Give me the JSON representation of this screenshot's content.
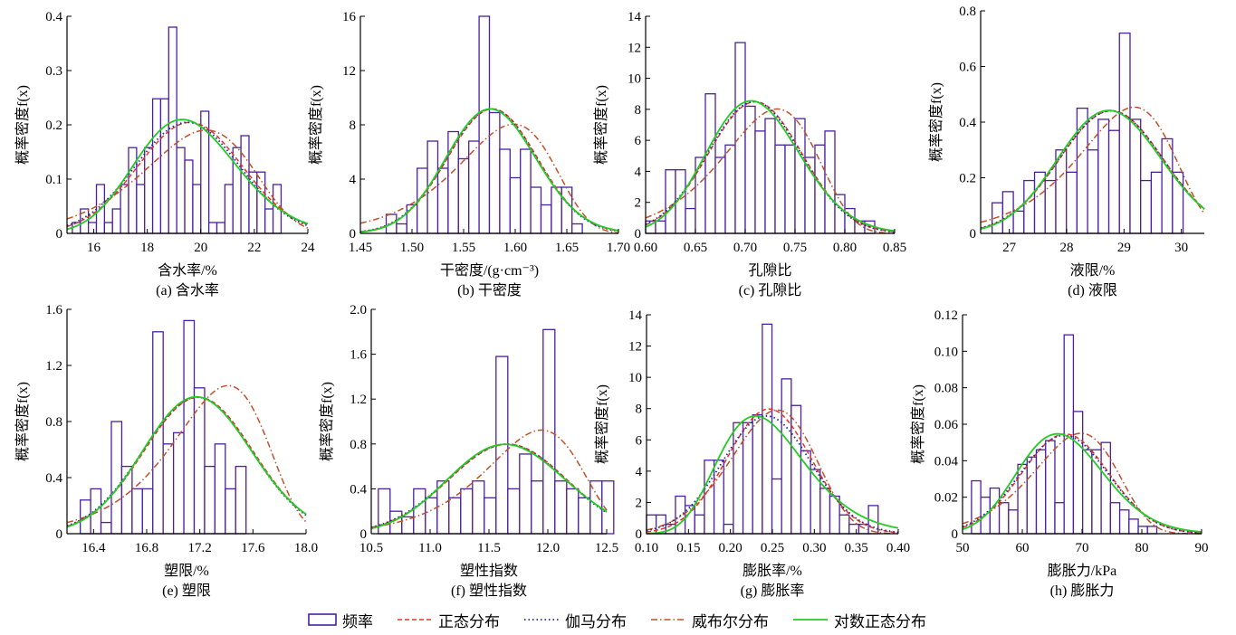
{
  "colors": {
    "bar": "#4b1fa0",
    "normal": "#e8332b",
    "gamma": "#1d2a9c",
    "weibull": "#c0502a",
    "lognormal": "#22cc22"
  },
  "legend": {
    "frequency": "频率",
    "normal": "正态分布",
    "gamma": "伽马分布",
    "weibull": "威布尔分布",
    "lognormal": "对数正态分布"
  },
  "chart_data": [
    {
      "type": "bar",
      "xlabel": "含水率/%",
      "caption": "(a) 含水率",
      "ylabel": "概率密度f(x)",
      "xlim": [
        15,
        24
      ],
      "ylim": [
        0,
        0.4
      ],
      "xticks": [
        "16",
        "18",
        "20",
        "22",
        "24"
      ],
      "xtick_values": [
        16,
        18,
        20,
        22,
        24
      ],
      "yticks": [
        "0",
        "0.1",
        "0.2",
        "0.3",
        "0.4"
      ],
      "ytick_values": [
        0,
        0.1,
        0.2,
        0.3,
        0.4
      ],
      "bin_start": 15.2,
      "bin_width": 0.3,
      "values": [
        0.02,
        0.045,
        0.02,
        0.09,
        0.02,
        0.045,
        0.09,
        0.158,
        0.09,
        0.158,
        0.248,
        0.248,
        0.38,
        0.158,
        0.135,
        0.09,
        0.225,
        0.02,
        0.02,
        0.09,
        0.158,
        0.18,
        0.113,
        0.113,
        0.045,
        0.09
      ],
      "fits": {
        "normal": {
          "dist": "normal",
          "mu": 19.6,
          "sigma": 1.95
        },
        "gamma": {
          "dist": "normal",
          "mu": 19.5,
          "sigma": 1.95
        },
        "weibull": {
          "dist": "weibull",
          "k": 10.5,
          "lambda": 20.4
        },
        "lognormal": {
          "dist": "lognormal",
          "mu": 2.97,
          "sigma": 0.098
        }
      }
    },
    {
      "type": "bar",
      "xlabel": "干密度/(g·cm⁻³)",
      "caption": "(b) 干密度",
      "ylabel": "概率密度f(x)",
      "xlim": [
        1.45,
        1.7
      ],
      "ylim": [
        0,
        16
      ],
      "xticks": [
        "1.45",
        "1.50",
        "1.55",
        "1.60",
        "1.65",
        "1.70"
      ],
      "xtick_values": [
        1.45,
        1.5,
        1.55,
        1.6,
        1.65,
        1.7
      ],
      "yticks": [
        "0",
        "4",
        "8",
        "12",
        "16"
      ],
      "ytick_values": [
        0,
        4,
        8,
        12,
        16
      ],
      "bin_start": 1.475,
      "bin_width": 0.01,
      "values": [
        1.4,
        0.7,
        2.1,
        4.8,
        6.8,
        4.8,
        7.5,
        5.5,
        6.8,
        16.0,
        8.9,
        6.2,
        4.1,
        6.2,
        3.4,
        2.1,
        3.4,
        3.4,
        0.7
      ],
      "fits": {
        "normal": {
          "dist": "normal",
          "mu": 1.578,
          "sigma": 0.0435
        },
        "gamma": {
          "dist": "normal",
          "mu": 1.577,
          "sigma": 0.0435
        },
        "weibull": {
          "dist": "weibull",
          "k": 35,
          "lambda": 1.6
        },
        "lognormal": {
          "dist": "lognormal",
          "mu": 0.4555,
          "sigma": 0.0276
        }
      }
    },
    {
      "type": "bar",
      "xlabel": "孔隙比",
      "caption": "(c) 孔隙比",
      "ylabel": "概率密度f(x)",
      "xlim": [
        0.6,
        0.85
      ],
      "ylim": [
        0,
        14
      ],
      "xticks": [
        "0.60",
        "0.65",
        "0.70",
        "0.75",
        "0.80",
        "0.85"
      ],
      "xtick_values": [
        0.6,
        0.65,
        0.7,
        0.75,
        0.8,
        0.85
      ],
      "yticks": [
        "0",
        "2",
        "4",
        "6",
        "8",
        "10",
        "12",
        "14"
      ],
      "ytick_values": [
        0,
        2,
        4,
        6,
        8,
        10,
        12,
        14
      ],
      "bin_start": 0.6,
      "bin_width": 0.01,
      "values": [
        0.8,
        0.8,
        4.1,
        4.1,
        1.6,
        4.9,
        9.0,
        4.9,
        5.7,
        12.3,
        8.2,
        6.6,
        7.4,
        5.7,
        5.7,
        7.4,
        4.9,
        5.7,
        6.6,
        2.5,
        1.6,
        0.8,
        0.8
      ],
      "fits": {
        "normal": {
          "dist": "normal",
          "mu": 0.71,
          "sigma": 0.047
        },
        "gamma": {
          "dist": "normal",
          "mu": 0.709,
          "sigma": 0.047
        },
        "weibull": {
          "dist": "weibull",
          "k": 16,
          "lambda": 0.735
        },
        "lognormal": {
          "dist": "lognormal",
          "mu": -0.344,
          "sigma": 0.066
        }
      }
    },
    {
      "type": "bar",
      "xlabel": "液限/%",
      "caption": "(d) 液限",
      "ylabel": "概率密度f(x)",
      "xlim": [
        26.5,
        30.4
      ],
      "ylim": [
        0,
        0.8
      ],
      "xticks": [
        "27",
        "28",
        "29",
        "30"
      ],
      "xtick_values": [
        27,
        28,
        29,
        30
      ],
      "yticks": [
        "0",
        "0.2",
        "0.4",
        "0.6",
        "0.8"
      ],
      "ytick_values": [
        0,
        0.2,
        0.4,
        0.6,
        0.8
      ],
      "bin_start": 26.7,
      "bin_width": 0.185,
      "values": [
        0.11,
        0.15,
        0.08,
        0.19,
        0.22,
        0.19,
        0.3,
        0.22,
        0.45,
        0.3,
        0.41,
        0.37,
        0.72,
        0.41,
        0.19,
        0.22,
        0.34,
        0.22
      ],
      "fits": {
        "normal": {
          "dist": "normal",
          "mu": 28.78,
          "sigma": 0.905
        },
        "gamma": {
          "dist": "normal",
          "mu": 28.77,
          "sigma": 0.905
        },
        "weibull": {
          "dist": "weibull",
          "k": 36,
          "lambda": 29.2
        },
        "lognormal": {
          "dist": "lognormal",
          "mu": 3.359,
          "sigma": 0.0314
        }
      }
    },
    {
      "type": "bar",
      "xlabel": "塑限/%",
      "caption": "(e) 塑限",
      "ylabel": "概率密度f(x)",
      "xlim": [
        16.2,
        18.0
      ],
      "ylim": [
        0,
        1.6
      ],
      "xticks": [
        "16.4",
        "16.8",
        "17.2",
        "17.6",
        "18.0"
      ],
      "xtick_values": [
        16.4,
        16.8,
        17.2,
        17.6,
        18.0
      ],
      "yticks": [
        "0",
        "0.4",
        "0.8",
        "1.2",
        "1.6"
      ],
      "ytick_values": [
        0,
        0.4,
        0.8,
        1.2,
        1.6
      ],
      "bin_start": 16.3,
      "bin_width": 0.078,
      "values": [
        0.24,
        0.32,
        0.08,
        0.8,
        0.48,
        0.32,
        0.32,
        1.44,
        0.64,
        0.72,
        1.52,
        1.04,
        0.48,
        0.64,
        0.32,
        0.48
      ],
      "fits": {
        "normal": {
          "dist": "normal",
          "mu": 17.19,
          "sigma": 0.41
        },
        "gamma": {
          "dist": "normal",
          "mu": 17.18,
          "sigma": 0.41
        },
        "weibull": {
          "dist": "weibull",
          "k": 50,
          "lambda": 17.42
        },
        "lognormal": {
          "dist": "lognormal",
          "mu": 2.844,
          "sigma": 0.0238
        }
      }
    },
    {
      "type": "bar",
      "xlabel": "塑性指数",
      "caption": "(f) 塑性指数",
      "ylabel": "概率密度f(x)",
      "xlim": [
        10.5,
        12.5
      ],
      "ylim": [
        0,
        2.0
      ],
      "xticks": [
        "10.5",
        "11.0",
        "11.5",
        "12.0",
        "12.5"
      ],
      "xtick_values": [
        10.5,
        11.0,
        11.5,
        12.0,
        12.5
      ],
      "yticks": [
        "0",
        "0.4",
        "0.8",
        "1.2",
        "1.6",
        "2.0"
      ],
      "ytick_values": [
        0,
        0.4,
        0.8,
        1.2,
        1.6,
        2.0
      ],
      "bin_start": 10.56,
      "bin_width": 0.1,
      "values": [
        0.4,
        0.2,
        0.15,
        0.4,
        0.32,
        0.47,
        0.32,
        0.4,
        0.47,
        0.32,
        1.58,
        0.4,
        0.71,
        0.47,
        1.82,
        0.47,
        0.4,
        0.32,
        0.47,
        0.47
      ],
      "fits": {
        "normal": {
          "dist": "normal",
          "mu": 11.66,
          "sigma": 0.5
        },
        "gamma": {
          "dist": "normal",
          "mu": 11.65,
          "sigma": 0.5
        },
        "weibull": {
          "dist": "weibull",
          "k": 30,
          "lambda": 11.96
        },
        "lognormal": {
          "dist": "lognormal",
          "mu": 2.456,
          "sigma": 0.043
        }
      }
    },
    {
      "type": "bar",
      "xlabel": "膨胀率/%",
      "caption": "(g) 膨胀率",
      "ylabel": "概率密度f(x)",
      "xlim": [
        0.1,
        0.4
      ],
      "ylim": [
        0,
        14
      ],
      "xticks": [
        "0.10",
        "0.15",
        "0.20",
        "0.25",
        "0.30",
        "0.35",
        "0.40"
      ],
      "xtick_values": [
        0.1,
        0.15,
        0.2,
        0.25,
        0.3,
        0.35,
        0.4
      ],
      "yticks": [
        "0",
        "2",
        "4",
        "6",
        "8",
        "10",
        "12",
        "14"
      ],
      "ytick_values": [
        0,
        2,
        4,
        6,
        8,
        10,
        12,
        14
      ],
      "bin_start": 0.1,
      "bin_width": 0.0115,
      "values": [
        1.2,
        1.2,
        0.6,
        2.4,
        1.8,
        1.2,
        4.7,
        4.7,
        0.6,
        7.1,
        7.1,
        7.6,
        13.4,
        3.5,
        9.9,
        8.2,
        5.3,
        4.1,
        2.9,
        2.4,
        1.2,
        0.6,
        0.6,
        1.8
      ],
      "fits": {
        "normal": {
          "dist": "normal",
          "mu": 0.246,
          "sigma": 0.05
        },
        "gamma": {
          "dist": "normal",
          "mu": 0.243,
          "sigma": 0.053
        },
        "weibull": {
          "dist": "weibull",
          "k": 5.6,
          "lambda": 0.265
        },
        "lognormal": {
          "dist": "lognormal",
          "mu": -1.42,
          "sigma": 0.225
        }
      }
    },
    {
      "type": "bar",
      "xlabel": "膨胀力/kPa",
      "caption": "(h) 膨胀力",
      "ylabel": "概率密度f(x)",
      "xlim": [
        50,
        90
      ],
      "ylim": [
        0,
        0.12
      ],
      "xticks": [
        "50",
        "60",
        "70",
        "80",
        "90"
      ],
      "xtick_values": [
        50,
        60,
        70,
        80,
        90
      ],
      "yticks": [
        "0",
        "0.02",
        "0.04",
        "0.06",
        "0.08",
        "0.10",
        "0.12"
      ],
      "ytick_values": [
        0,
        0.02,
        0.04,
        0.06,
        0.08,
        0.1,
        0.12
      ],
      "bin_start": 51.5,
      "bin_width": 1.55,
      "values": [
        0.029,
        0.02,
        0.025,
        0.017,
        0.013,
        0.038,
        0.042,
        0.046,
        0.051,
        0.017,
        0.109,
        0.067,
        0.046,
        0.046,
        0.05,
        0.017,
        0.013,
        0.008,
        0.004,
        0.004
      ],
      "fits": {
        "normal": {
          "dist": "normal",
          "mu": 67.2,
          "sigma": 7.3
        },
        "gamma": {
          "dist": "normal",
          "mu": 67.0,
          "sigma": 7.4
        },
        "weibull": {
          "dist": "weibull",
          "k": 10.5,
          "lambda": 70.5
        },
        "lognormal": {
          "dist": "lognormal",
          "mu": 4.2,
          "sigma": 0.11
        }
      }
    }
  ]
}
